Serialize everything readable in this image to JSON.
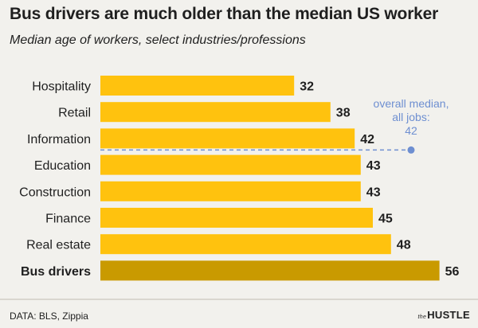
{
  "title": "Bus drivers are much older than the median US worker",
  "subtitle": "Median age of workers, select industries/professions",
  "chart_data": {
    "type": "bar",
    "orientation": "horizontal",
    "categories": [
      "Hospitality",
      "Retail",
      "Information",
      "Education",
      "Construction",
      "Finance",
      "Real estate",
      "Bus drivers"
    ],
    "values": [
      32,
      38,
      42,
      43,
      43,
      45,
      48,
      56
    ],
    "highlight": "Bus drivers",
    "bar_color": "#ffc20e",
    "highlight_color": "#c99a00",
    "annotation": {
      "lines": [
        "overall median,",
        "all jobs:",
        "42"
      ],
      "value": 42,
      "color": "#6e8fd1"
    },
    "grid": false
  },
  "source": "DATA: BLS, Zippia",
  "brand": {
    "prefix": "the",
    "name": "HUSTLE"
  }
}
